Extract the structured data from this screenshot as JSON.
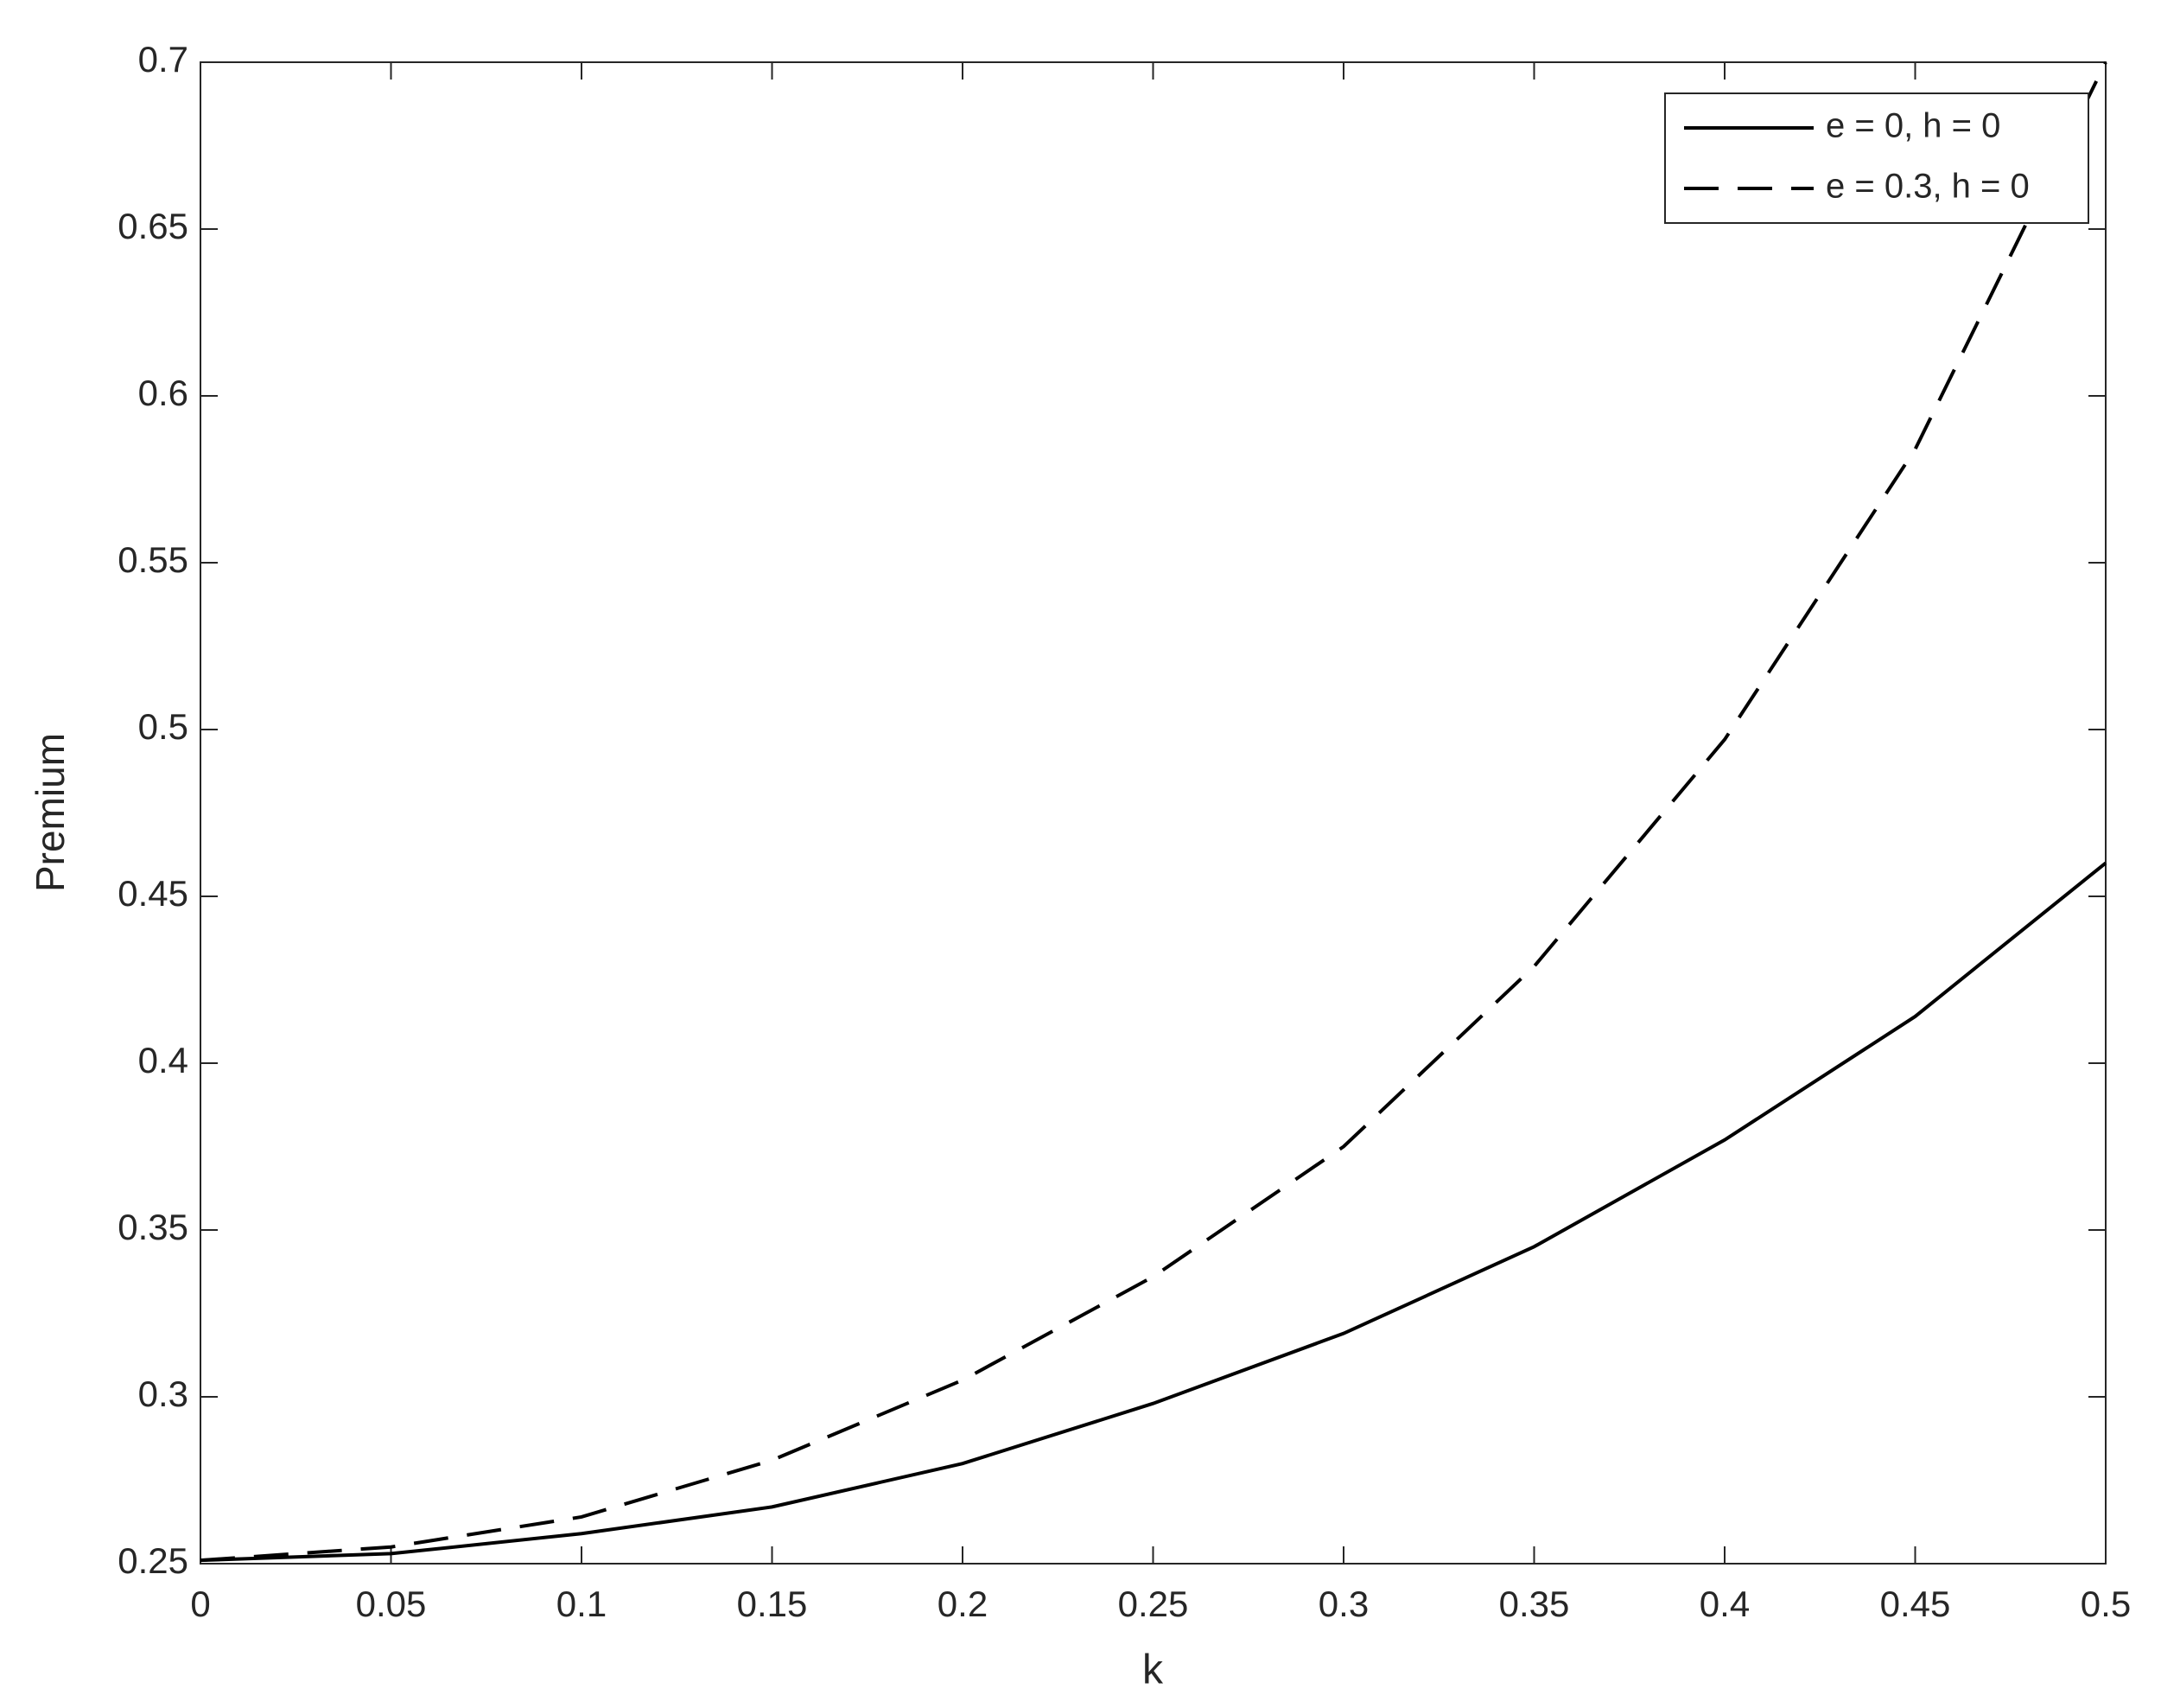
{
  "chart_data": {
    "type": "line",
    "x_label": "k",
    "y_label": "Premium",
    "x": [
      0,
      0.05,
      0.1,
      0.15,
      0.2,
      0.25,
      0.3,
      0.35,
      0.4,
      0.45,
      0.5
    ],
    "series": [
      {
        "name": "e = 0, h = 0",
        "color": "#000000",
        "dash": "solid",
        "values": [
          0.251,
          0.253,
          0.259,
          0.267,
          0.28,
          0.298,
          0.319,
          0.345,
          0.377,
          0.414,
          0.46
        ]
      },
      {
        "name": "e = 0.3, h = 0",
        "color": "#000000",
        "dash": "dashed",
        "values": [
          0.251,
          0.255,
          0.264,
          0.281,
          0.305,
          0.336,
          0.375,
          0.429,
          0.497,
          0.584,
          0.7
        ]
      }
    ],
    "xlim": [
      0,
      0.5
    ],
    "ylim": [
      0.25,
      0.7
    ],
    "xticks": [
      0,
      0.05,
      0.1,
      0.15,
      0.2,
      0.25,
      0.3,
      0.35,
      0.4,
      0.45,
      0.5
    ],
    "yticks": [
      0.25,
      0.3,
      0.35,
      0.4,
      0.45,
      0.5,
      0.55,
      0.6,
      0.65,
      0.7
    ],
    "grid": false,
    "legend": "top-right"
  }
}
